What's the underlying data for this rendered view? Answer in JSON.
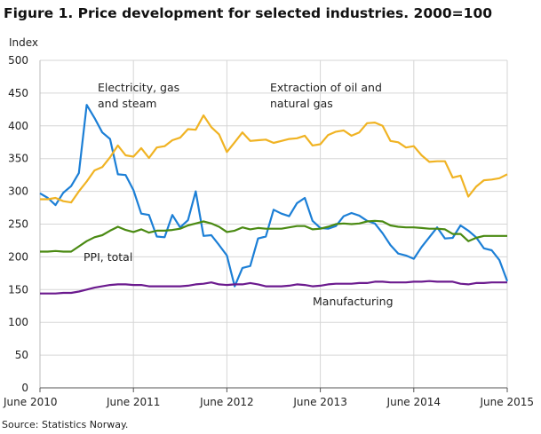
{
  "title": "Figure 1. Price development for selected industries. 2000=100",
  "source": "Source: Statistics Norway.",
  "chart_data": {
    "type": "line",
    "title": "Figure 1. Price development for selected industries. 2000=100",
    "ylabel": "Index",
    "xlabel": "",
    "ylim": [
      0,
      500
    ],
    "yticks": [
      0,
      50,
      100,
      150,
      200,
      250,
      300,
      350,
      400,
      450,
      500
    ],
    "xticks": [
      "June 2010",
      "June 2011",
      "June 2012",
      "June 2013",
      "June 2014",
      "June 2015"
    ],
    "x_start": "2010-06",
    "x_end": "2015-06",
    "x_frequency": "monthly",
    "grid": true,
    "series": [
      {
        "name": "Electricity, gas and steam",
        "label_lines": [
          "Electricity, gas",
          "and steam"
        ],
        "color": "#1c7fd6",
        "values": [
          297,
          290,
          279,
          298,
          308,
          328,
          432,
          412,
          390,
          380,
          326,
          325,
          302,
          266,
          264,
          231,
          230,
          264,
          245,
          256,
          300,
          232,
          233,
          218,
          202,
          155,
          183,
          186,
          228,
          231,
          272,
          266,
          262,
          282,
          290,
          255,
          244,
          243,
          247,
          262,
          267,
          263,
          255,
          251,
          236,
          218,
          205,
          202,
          197,
          215,
          230,
          245,
          228,
          229,
          248,
          240,
          230,
          213,
          210,
          195,
          163
        ]
      },
      {
        "name": "Extraction of oil and natural gas",
        "label_lines": [
          "Extraction of oil and",
          "natural gas"
        ],
        "color": "#f0b323",
        "values": [
          288,
          288,
          290,
          285,
          283,
          300,
          315,
          332,
          337,
          352,
          370,
          355,
          353,
          366,
          351,
          367,
          369,
          378,
          382,
          395,
          394,
          416,
          398,
          387,
          360,
          375,
          390,
          377,
          378,
          379,
          374,
          377,
          380,
          381,
          385,
          370,
          372,
          386,
          391,
          393,
          385,
          390,
          404,
          405,
          400,
          377,
          375,
          367,
          369,
          355,
          345,
          346,
          346,
          321,
          324,
          292,
          307,
          317,
          318,
          320,
          326
        ]
      },
      {
        "name": "PPI, total",
        "label_lines": [
          "PPI, total"
        ],
        "color": "#4a8a12",
        "values": [
          208,
          208,
          209,
          208,
          208,
          216,
          224,
          230,
          233,
          240,
          246,
          241,
          238,
          242,
          237,
          240,
          240,
          241,
          243,
          248,
          251,
          254,
          251,
          246,
          238,
          240,
          245,
          242,
          244,
          243,
          243,
          243,
          245,
          247,
          247,
          242,
          243,
          246,
          250,
          251,
          250,
          251,
          254,
          255,
          254,
          248,
          246,
          245,
          245,
          244,
          243,
          243,
          242,
          235,
          235,
          224,
          229,
          232,
          232,
          232,
          232
        ]
      },
      {
        "name": "Manufacturing",
        "label_lines": [
          "Manufacturing"
        ],
        "color": "#6b1a8e",
        "values": [
          144,
          144,
          144,
          145,
          145,
          147,
          150,
          153,
          155,
          157,
          158,
          158,
          157,
          157,
          155,
          155,
          155,
          155,
          155,
          156,
          158,
          159,
          161,
          158,
          157,
          158,
          158,
          160,
          158,
          155,
          155,
          155,
          156,
          158,
          157,
          155,
          156,
          158,
          159,
          159,
          159,
          160,
          160,
          162,
          162,
          161,
          161,
          161,
          162,
          162,
          163,
          162,
          162,
          162,
          159,
          158,
          160,
          160,
          161,
          161,
          161
        ]
      }
    ]
  }
}
